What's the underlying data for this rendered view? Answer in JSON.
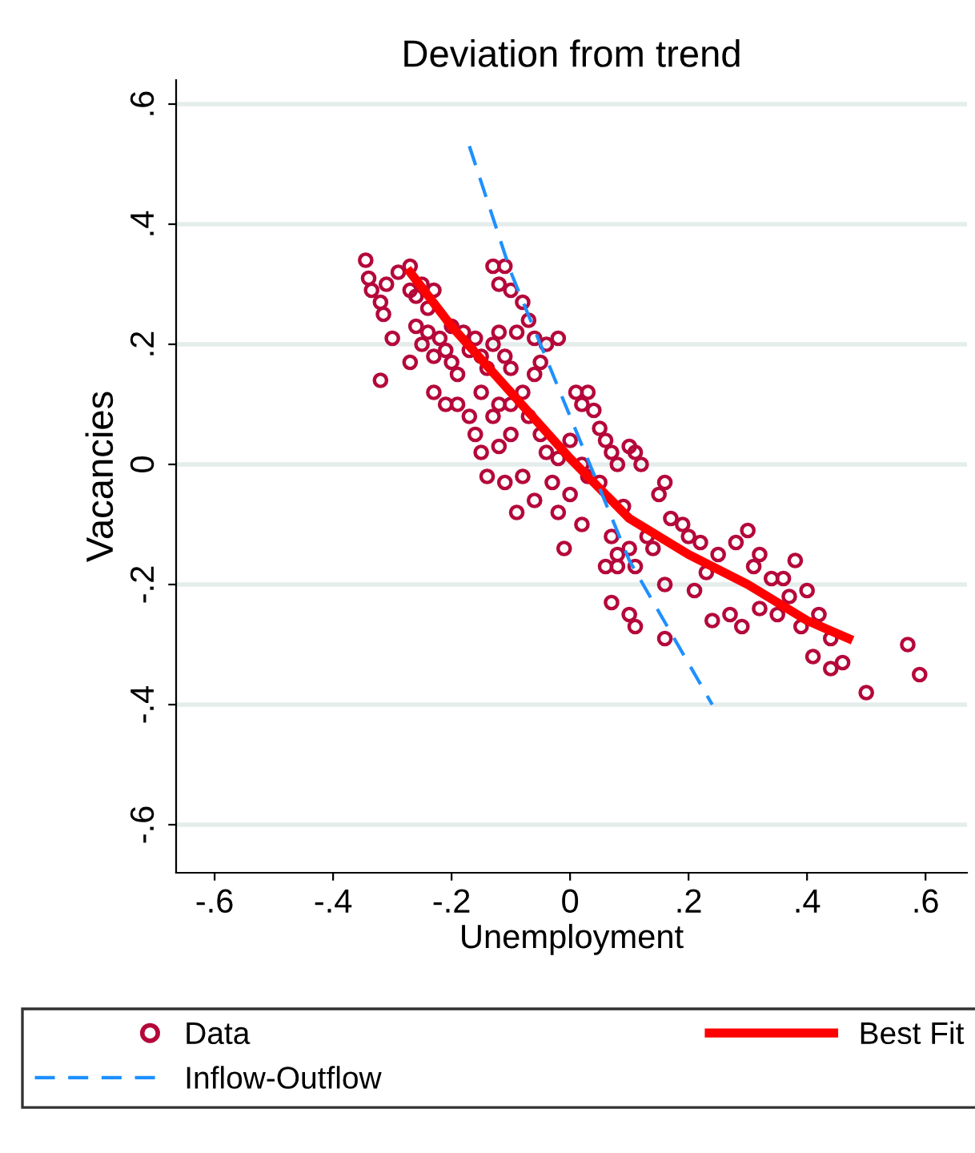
{
  "chart_data": {
    "type": "scatter",
    "title": "Deviation from trend",
    "xlabel": "Unemployment",
    "ylabel": "Vacancies",
    "xlim": [
      -0.665,
      0.67
    ],
    "ylim": [
      -0.68,
      0.64
    ],
    "xticks": [
      {
        "value": -0.6,
        "label": "-.6"
      },
      {
        "value": -0.4,
        "label": "-.4"
      },
      {
        "value": -0.2,
        "label": "-.2"
      },
      {
        "value": 0,
        "label": "0"
      },
      {
        "value": 0.2,
        "label": ".2"
      },
      {
        "value": 0.4,
        "label": ".4"
      },
      {
        "value": 0.6,
        "label": ".6"
      }
    ],
    "yticks": [
      {
        "value": -0.6,
        "label": "-.6"
      },
      {
        "value": -0.4,
        "label": "-.4"
      },
      {
        "value": -0.2,
        "label": "-.2"
      },
      {
        "value": 0,
        "label": "0"
      },
      {
        "value": 0.2,
        "label": ".2"
      },
      {
        "value": 0.4,
        "label": ".4"
      },
      {
        "value": 0.6,
        "label": ".6"
      }
    ],
    "grid": "y",
    "legend": "bottom",
    "series": [
      {
        "name": "Data",
        "marker": "circle",
        "color": "#b5083a",
        "x": [
          -0.345,
          -0.34,
          -0.335,
          -0.32,
          -0.315,
          -0.31,
          -0.32,
          -0.3,
          -0.29,
          -0.27,
          -0.27,
          -0.26,
          -0.25,
          -0.24,
          -0.23,
          -0.27,
          -0.26,
          -0.25,
          -0.24,
          -0.23,
          -0.22,
          -0.21,
          -0.2,
          -0.2,
          -0.19,
          -0.18,
          -0.17,
          -0.16,
          -0.15,
          -0.14,
          -0.13,
          -0.12,
          -0.11,
          -0.1,
          -0.23,
          -0.21,
          -0.19,
          -0.17,
          -0.16,
          -0.15,
          -0.14,
          -0.13,
          -0.12,
          -0.15,
          -0.11,
          -0.13,
          -0.12,
          -0.1,
          -0.08,
          -0.07,
          -0.09,
          -0.06,
          -0.04,
          -0.02,
          -0.05,
          -0.06,
          -0.08,
          -0.1,
          -0.07,
          -0.05,
          -0.04,
          -0.1,
          -0.12,
          -0.08,
          -0.11,
          -0.09,
          -0.06,
          -0.03,
          -0.02,
          0.0,
          0.01,
          0.02,
          0.03,
          0.04,
          0.05,
          0.06,
          0.07,
          0.02,
          0.03,
          0.0,
          -0.02,
          -0.01,
          0.02,
          0.05,
          0.08,
          0.1,
          0.11,
          0.12,
          0.15,
          0.16,
          0.09,
          0.07,
          0.06,
          0.08,
          0.1,
          0.11,
          0.13,
          0.14,
          0.17,
          0.19,
          0.16,
          0.21,
          0.23,
          0.25,
          0.28,
          0.3,
          0.31,
          0.32,
          0.34,
          0.35,
          0.37,
          0.38,
          0.39,
          0.4,
          0.42,
          0.44,
          0.41,
          0.44,
          0.46,
          0.27,
          0.24,
          0.29,
          0.07,
          0.1,
          0.11,
          0.16,
          0.08,
          0.5,
          0.57,
          0.59,
          0.32,
          0.36,
          0.2,
          0.22
        ],
        "values": [
          0.34,
          0.31,
          0.29,
          0.27,
          0.25,
          0.3,
          0.14,
          0.21,
          0.32,
          0.33,
          0.29,
          0.28,
          0.3,
          0.26,
          0.29,
          0.17,
          0.23,
          0.2,
          0.22,
          0.18,
          0.21,
          0.19,
          0.23,
          0.17,
          0.15,
          0.22,
          0.19,
          0.21,
          0.18,
          0.16,
          0.2,
          0.22,
          0.18,
          0.16,
          0.12,
          0.1,
          0.1,
          0.08,
          0.05,
          0.02,
          -0.02,
          0.08,
          0.1,
          0.12,
          0.33,
          0.33,
          0.3,
          0.29,
          0.27,
          0.24,
          0.22,
          0.21,
          0.2,
          0.21,
          0.17,
          0.15,
          0.12,
          0.1,
          0.08,
          0.05,
          0.02,
          0.05,
          0.03,
          -0.02,
          -0.03,
          -0.08,
          -0.06,
          -0.03,
          0.01,
          0.04,
          0.12,
          0.1,
          0.12,
          0.09,
          0.06,
          0.04,
          0.02,
          0.0,
          -0.02,
          -0.05,
          -0.08,
          -0.14,
          -0.1,
          -0.03,
          0.0,
          0.03,
          0.02,
          0.0,
          -0.05,
          -0.03,
          -0.07,
          -0.12,
          -0.17,
          -0.15,
          -0.14,
          -0.17,
          -0.12,
          -0.14,
          -0.09,
          -0.1,
          -0.2,
          -0.21,
          -0.18,
          -0.15,
          -0.13,
          -0.11,
          -0.17,
          -0.24,
          -0.19,
          -0.25,
          -0.22,
          -0.16,
          -0.27,
          -0.21,
          -0.25,
          -0.29,
          -0.32,
          -0.34,
          -0.33,
          -0.25,
          -0.26,
          -0.27,
          -0.23,
          -0.25,
          -0.27,
          -0.29,
          -0.17,
          -0.38,
          -0.3,
          -0.35,
          -0.15,
          -0.19,
          -0.12,
          -0.13
        ]
      },
      {
        "name": "Best Fit",
        "type": "line",
        "color": "#ff0000",
        "line_style": "solid",
        "x": [
          -0.27,
          -0.2,
          -0.1,
          0,
          0.1,
          0.2,
          0.3,
          0.4,
          0.47
        ],
        "values": [
          0.32,
          0.23,
          0.12,
          0.01,
          -0.09,
          -0.15,
          -0.2,
          -0.26,
          -0.29
        ]
      },
      {
        "name": "Inflow-Outflow",
        "type": "line",
        "color": "#1e90ff",
        "line_style": "dashed",
        "x": [
          -0.17,
          -0.1,
          0,
          0.1,
          0.24
        ],
        "values": [
          0.53,
          0.32,
          0.08,
          -0.16,
          -0.4
        ]
      }
    ]
  }
}
